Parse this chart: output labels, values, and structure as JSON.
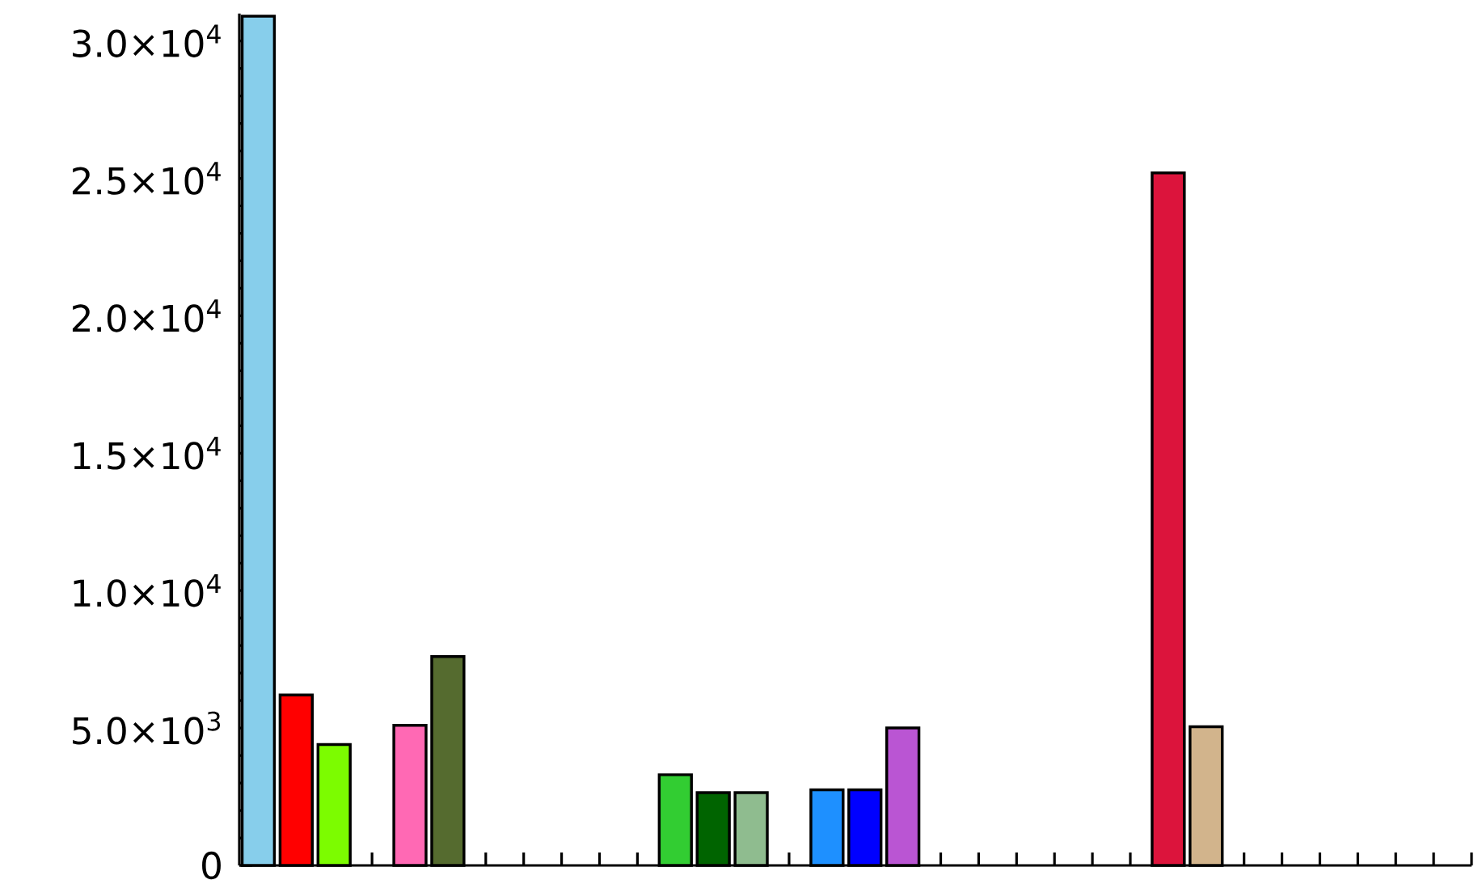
{
  "chart_data": {
    "type": "bar",
    "categories": [
      null,
      null,
      null,
      null,
      null,
      null,
      null,
      null,
      null,
      null,
      null,
      null,
      null,
      null,
      null,
      null,
      null,
      null,
      null,
      null,
      null,
      null,
      null,
      null,
      null,
      null,
      null,
      null,
      null,
      null,
      null,
      null,
      null
    ],
    "values": [
      30900,
      6200,
      4400,
      null,
      5100,
      7600,
      null,
      null,
      null,
      null,
      null,
      3300,
      2650,
      2650,
      null,
      2750,
      2750,
      5000,
      null,
      null,
      null,
      null,
      null,
      null,
      25200,
      5050,
      null,
      null,
      null,
      null,
      null,
      null,
      null
    ],
    "colors": [
      "#87ceeb",
      "#ff0000",
      "#7cfc00",
      null,
      "#ff69b4",
      "#556b2f",
      null,
      null,
      null,
      null,
      null,
      "#32cd32",
      "#006400",
      "#8fbc8f",
      null,
      "#1e90ff",
      "#0000ff",
      "#ba55d3",
      null,
      null,
      null,
      null,
      null,
      null,
      "#dc143c",
      "#d2b48c",
      null,
      null,
      null,
      null,
      null,
      null,
      null
    ],
    "ylim": [
      0,
      31000
    ],
    "yticks": [
      {
        "value": 0,
        "label": "0"
      },
      {
        "value": 1000,
        "label": null
      },
      {
        "value": 2000,
        "label": null
      },
      {
        "value": 3000,
        "label": null
      },
      {
        "value": 4000,
        "label": null
      },
      {
        "value": 5000,
        "label": "5.0×10$^{3}$"
      },
      {
        "value": 6000,
        "label": null
      },
      {
        "value": 7000,
        "label": null
      },
      {
        "value": 8000,
        "label": null
      },
      {
        "value": 9000,
        "label": null
      },
      {
        "value": 10000,
        "label": "1.0×10$^{4}$"
      },
      {
        "value": 11000,
        "label": null
      },
      {
        "value": 12000,
        "label": null
      },
      {
        "value": 13000,
        "label": null
      },
      {
        "value": 14000,
        "label": null
      },
      {
        "value": 15000,
        "label": "1.5×10$^{4}$"
      },
      {
        "value": 16000,
        "label": null
      },
      {
        "value": 17000,
        "label": null
      },
      {
        "value": 18000,
        "label": null
      },
      {
        "value": 19000,
        "label": null
      },
      {
        "value": 20000,
        "label": "2.0×10$^{4}$"
      },
      {
        "value": 21000,
        "label": null
      },
      {
        "value": 22000,
        "label": null
      },
      {
        "value": 23000,
        "label": null
      },
      {
        "value": 24000,
        "label": null
      },
      {
        "value": 25000,
        "label": "2.5×10$^{4}$"
      },
      {
        "value": 26000,
        "label": null
      },
      {
        "value": 27000,
        "label": null
      },
      {
        "value": 28000,
        "label": null
      },
      {
        "value": 29000,
        "label": null
      },
      {
        "value": 30000,
        "label": "3.0×10$^{4}$"
      }
    ]
  }
}
